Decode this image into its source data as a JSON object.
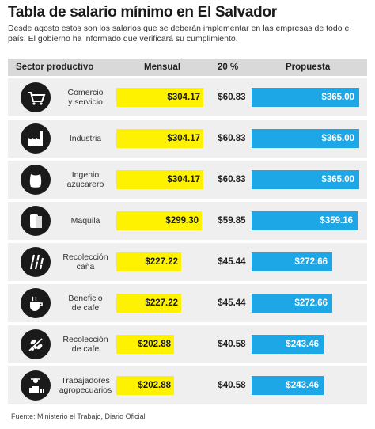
{
  "title": "Tabla de salario mínimo en El Salvador",
  "subtitle": "Desde agosto estos son los salarios que se deberán implementar en las empresas de todo el país. El gobierno ha informado que verificará su cumplimiento.",
  "headers": {
    "sector": "Sector productivo",
    "mensual": "Mensual",
    "pct": "20 %",
    "propuesta": "Propuesta"
  },
  "source": "Fuente: Ministerio el Trabajo, Diario Oficial",
  "colors": {
    "mensual_bar": "#fff200",
    "propuesta_bar": "#1ea7e6",
    "row_bg": "#efefef",
    "header_bg": "#d9d9d9",
    "icon_bg": "#1a1a1a"
  },
  "chart_data": {
    "type": "table",
    "title": "Tabla de salario mínimo en El Salvador",
    "columns": [
      "Sector productivo",
      "Mensual",
      "20 %",
      "Propuesta"
    ],
    "categories": [
      "Comercio y servicio",
      "Industria",
      "Ingenio azucarero",
      "Maquila",
      "Recolección caña",
      "Beneficio de cafe",
      "Recolección de cafe",
      "Trabajadores agropecuarios"
    ],
    "rows": [
      {
        "label_lines": [
          "Comercio",
          "y servicio"
        ],
        "icon": "shopping-cart-icon",
        "mensual": "$304.17",
        "pct": "$60.83",
        "propuesta": "$365.00",
        "mensual_value": 304.17,
        "propuesta_value": 365.0
      },
      {
        "label_lines": [
          "Industria"
        ],
        "icon": "factory-icon",
        "mensual": "$304.17",
        "pct": "$60.83",
        "propuesta": "$365.00",
        "mensual_value": 304.17,
        "propuesta_value": 365.0
      },
      {
        "label_lines": [
          "Ingenio",
          "azucarero"
        ],
        "icon": "sugar-sack-icon",
        "mensual": "$304.17",
        "pct": "$60.83",
        "propuesta": "$365.00",
        "mensual_value": 304.17,
        "propuesta_value": 365.0
      },
      {
        "label_lines": [
          "Maquila"
        ],
        "icon": "fabric-roll-icon",
        "mensual": "$299.30",
        "pct": "$59.85",
        "propuesta": "$359.16",
        "mensual_value": 299.3,
        "propuesta_value": 359.16
      },
      {
        "label_lines": [
          "Recolección",
          "caña"
        ],
        "icon": "sugarcane-icon",
        "mensual": "$227.22",
        "pct": "$45.44",
        "propuesta": "$272.66",
        "mensual_value": 227.22,
        "propuesta_value": 272.66
      },
      {
        "label_lines": [
          "Beneficio",
          "de cafe"
        ],
        "icon": "coffee-cup-icon",
        "mensual": "$227.22",
        "pct": "$45.44",
        "propuesta": "$272.66",
        "mensual_value": 227.22,
        "propuesta_value": 272.66
      },
      {
        "label_lines": [
          "Recolección",
          "de cafe"
        ],
        "icon": "coffee-branch-icon",
        "mensual": "$202.88",
        "pct": "$40.58",
        "propuesta": "$243.46",
        "mensual_value": 202.88,
        "propuesta_value": 243.46
      },
      {
        "label_lines": [
          "Trabajadores",
          "agropecuarios"
        ],
        "icon": "farm-worker-icon",
        "mensual": "$202.88",
        "pct": "$40.58",
        "propuesta": "$243.46",
        "mensual_value": 202.88,
        "propuesta_value": 243.46
      }
    ]
  }
}
